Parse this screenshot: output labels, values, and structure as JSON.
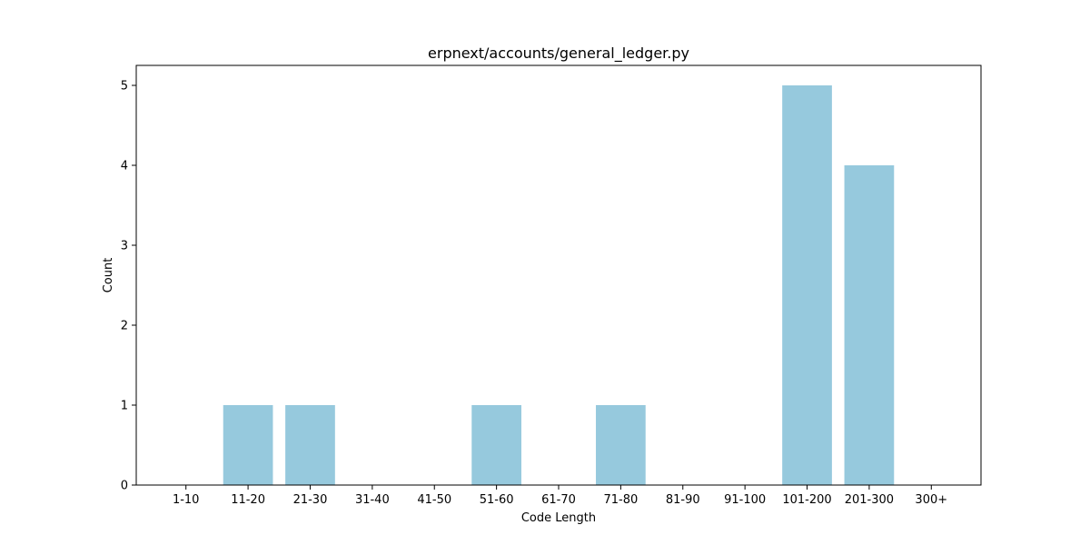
{
  "chart_data": {
    "type": "bar",
    "title": "erpnext/accounts/general_ledger.py",
    "xlabel": "Code Length",
    "ylabel": "Count",
    "categories": [
      "1-10",
      "11-20",
      "21-30",
      "31-40",
      "41-50",
      "51-60",
      "61-70",
      "71-80",
      "81-90",
      "91-100",
      "101-200",
      "201-300",
      "300+"
    ],
    "values": [
      0,
      1,
      1,
      0,
      0,
      1,
      0,
      1,
      0,
      0,
      5,
      4,
      0
    ],
    "ylim": [
      0,
      5.25
    ],
    "yticks": [
      0,
      1,
      2,
      3,
      4,
      5
    ],
    "bar_color": "#96c9dd",
    "grid": false,
    "legend": "none"
  }
}
